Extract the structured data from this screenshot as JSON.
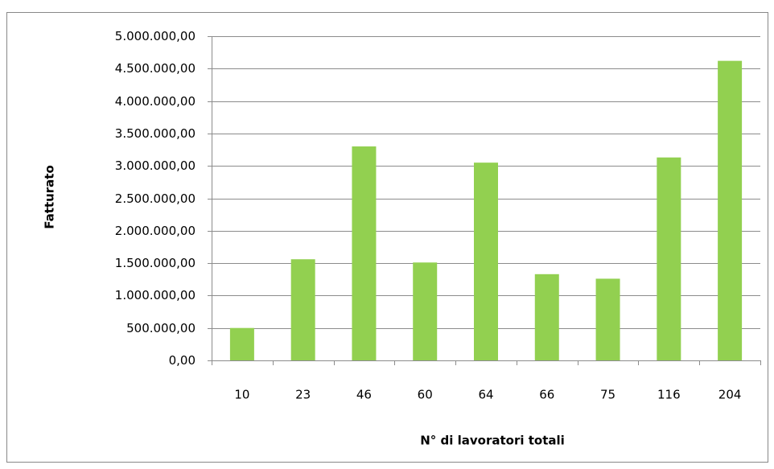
{
  "chart_data": {
    "type": "bar",
    "x_label": "N° di lavoratori totali",
    "y_label": "Fatturato",
    "categories": [
      "10",
      "23",
      "46",
      "60",
      "64",
      "66",
      "75",
      "116",
      "204"
    ],
    "values": [
      500000,
      1560000,
      3300000,
      1510000,
      3050000,
      1330000,
      1260000,
      3130000,
      4620000
    ],
    "color": "#92d050",
    "ylim": [
      0,
      5000000
    ],
    "yticks": [
      {
        "value": 0,
        "label": "0,00"
      },
      {
        "value": 500000,
        "label": "500.000,00"
      },
      {
        "value": 1000000,
        "label": "1.000.000,00"
      },
      {
        "value": 1500000,
        "label": "1.500.000,00"
      },
      {
        "value": 2000000,
        "label": "2.000.000,00"
      },
      {
        "value": 2500000,
        "label": "2.500.000,00"
      },
      {
        "value": 3000000,
        "label": "3.000.000,00"
      },
      {
        "value": 3500000,
        "label": "3.500.000,00"
      },
      {
        "value": 4000000,
        "label": "4.000.000,00"
      },
      {
        "value": 4500000,
        "label": "4.500.000,00"
      },
      {
        "value": 5000000,
        "label": "5.000.000,00"
      }
    ],
    "grid": true
  }
}
